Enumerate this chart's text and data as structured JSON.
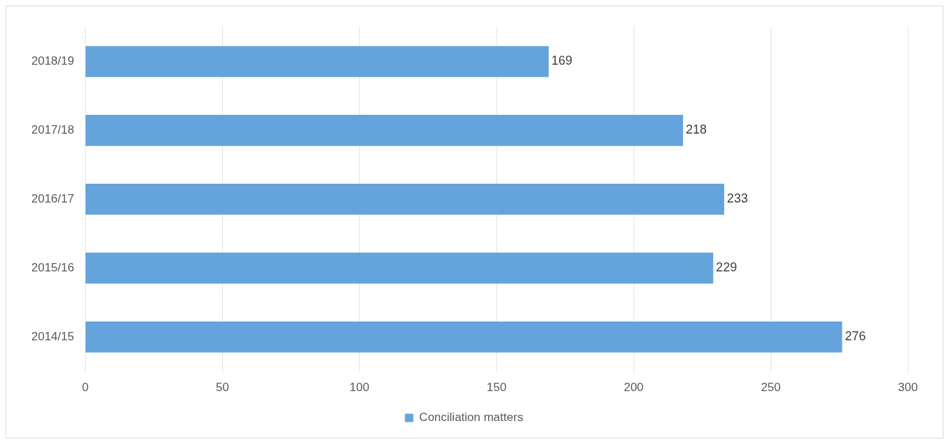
{
  "chart_data": {
    "type": "bar",
    "orientation": "horizontal",
    "categories": [
      "2018/19",
      "2017/18",
      "2016/17",
      "2015/16",
      "2014/15"
    ],
    "series": [
      {
        "name": "Conciliation matters",
        "color": "#65a3dc",
        "values": [
          169,
          218,
          233,
          229,
          276
        ]
      }
    ],
    "xlim": [
      0,
      300
    ],
    "xticks": [
      0,
      50,
      100,
      150,
      200,
      250,
      300
    ],
    "grid": "x",
    "legend": "bottom",
    "data_labels": true
  }
}
